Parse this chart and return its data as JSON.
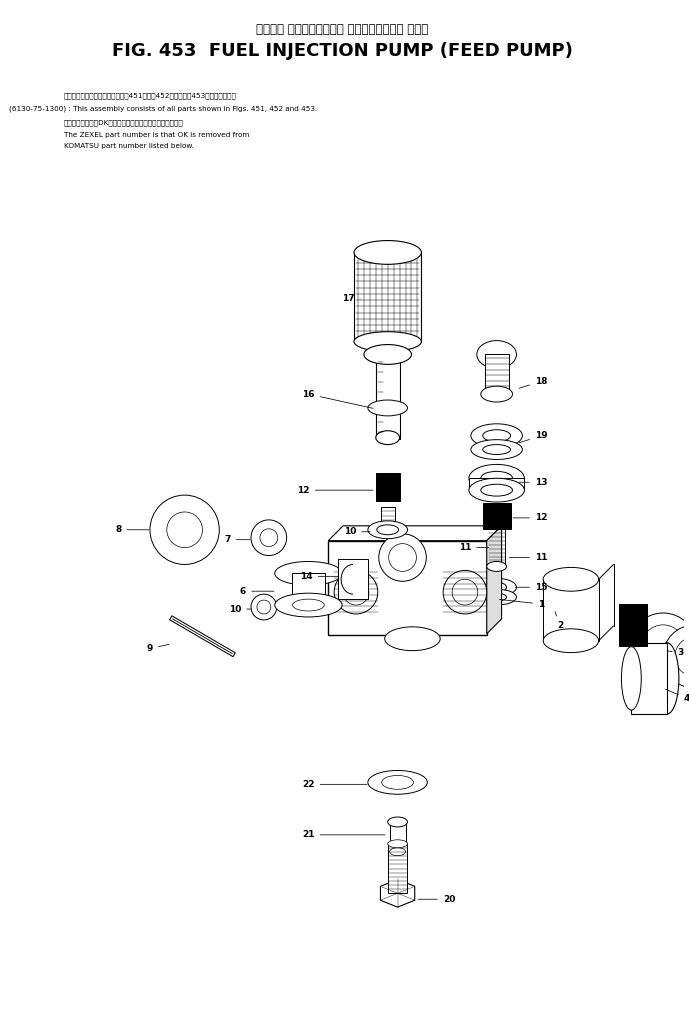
{
  "title_japanese": "フェエル インジェクション ポンプ　フィード ポンプ",
  "title_main": "FIG. 453  FUEL INJECTION PUMP (FEED PUMP)",
  "part_number": "(6130-75-1300)",
  "note_ja1": "このアッセンブリの構成部品は第451図、第452図および第453図を含みます。",
  "note_en1": "This assembly consists of all parts shown in Figs. 451, 452 and 453.",
  "note_ja2": "品番のメーカ記号DKを除いたものがゼクセルの品番です。",
  "note_en2": "The ZEXEL part number is that OK is removed from",
  "note_en3": "KOMATSU part number listed below.",
  "bg_color": "#ffffff",
  "fg_color": "#000000"
}
